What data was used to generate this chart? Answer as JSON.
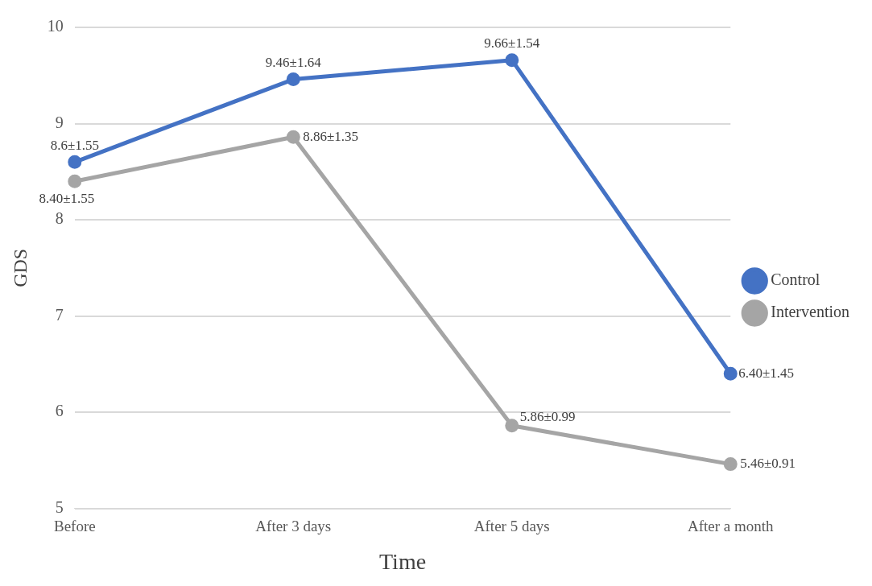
{
  "chart_data": {
    "type": "line",
    "xlabel": "Time",
    "ylabel": "GDS",
    "categories": [
      "Before",
      "After 3 days",
      "After 5 days",
      "After a month"
    ],
    "series": [
      {
        "name": "Control",
        "color": "#4472c4",
        "values": [
          8.6,
          9.46,
          9.66,
          6.4
        ],
        "value_labels": [
          "8.6±1.55",
          "9.46±1.64",
          "9.66±1.54",
          "6.40±1.45"
        ]
      },
      {
        "name": "Intervention",
        "color": "#a5a5a5",
        "values": [
          8.4,
          8.86,
          5.86,
          5.46
        ],
        "value_labels": [
          "8.40±1.55",
          "8.86±1.35",
          "5.86±0.99",
          "5.46±0.91"
        ]
      }
    ],
    "ylim": [
      5,
      10
    ],
    "yticks": [
      5,
      6,
      7,
      8,
      9,
      10
    ],
    "grid": "y",
    "legend": "right",
    "marker": "circle",
    "line_style": "solid"
  }
}
